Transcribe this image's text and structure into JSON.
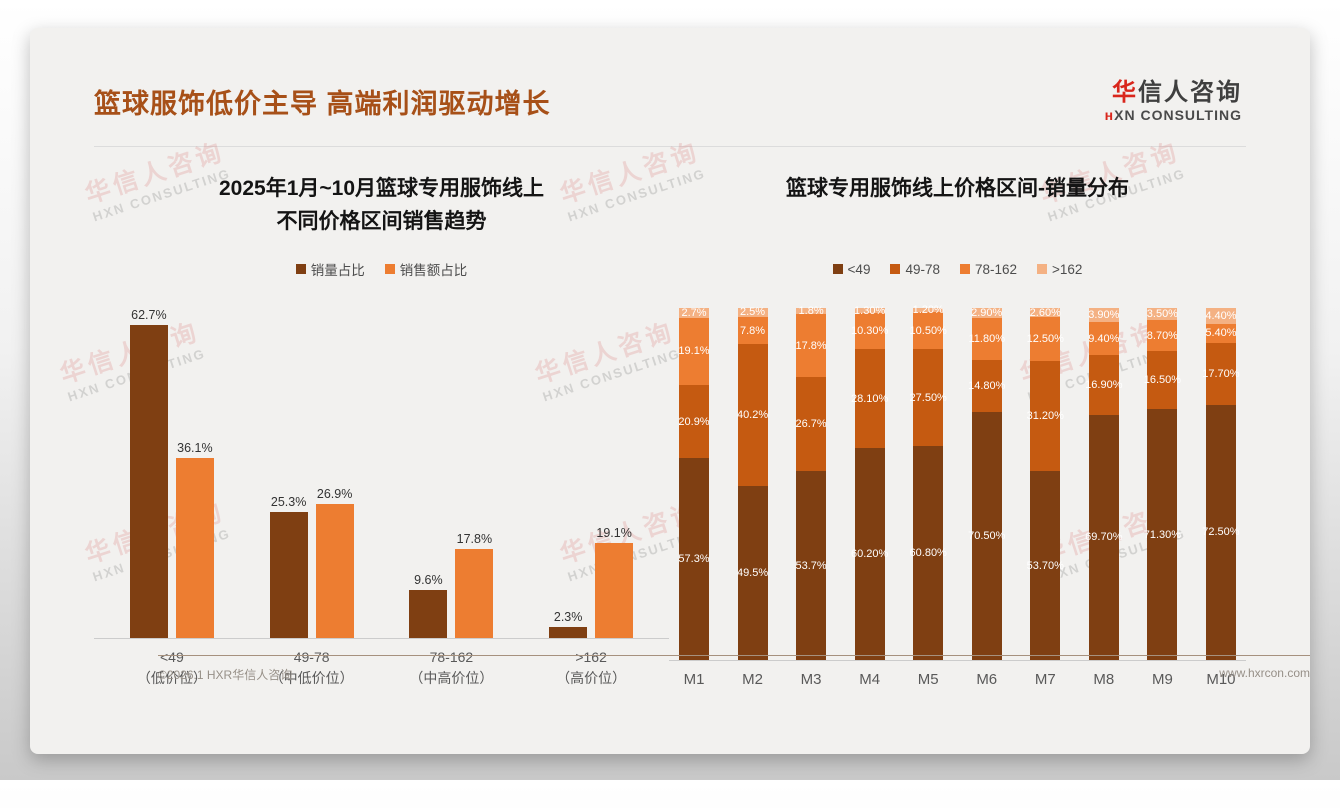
{
  "page": {
    "title": "篮球服饰低价主导 高端利润驱动增长",
    "logo": {
      "cn_red": "华",
      "cn_rest": "信人咨询",
      "en": "HXN CONSULTING"
    },
    "footer": {
      "left": "©2026.1 HXR华信人咨询",
      "right": "www.hxrcon.com"
    },
    "watermark": {
      "cn": "华信人咨询",
      "en": "HXN CONSULTING"
    }
  },
  "colors": {
    "title": "#a75018",
    "series_dark": "#7f3f12",
    "series_mid": "#c55a11",
    "series_orange": "#ed7d31",
    "series_light": "#f4b183"
  },
  "chart_data": [
    {
      "type": "bar",
      "title_lines": [
        "2025年1月~10月篮球专用服饰线上",
        "不同价格区间销售趋势"
      ],
      "categories": [
        "<49",
        "49-78",
        "78-162",
        ">162"
      ],
      "category_sublabels": [
        "（低价位）",
        "（中低价位）",
        "（中高价位）",
        "（高价位）"
      ],
      "ylim": [
        0,
        66
      ],
      "grid": false,
      "legend_position": "top",
      "series": [
        {
          "name": "销量占比",
          "color": "#7f3f12",
          "values": [
            62.7,
            25.3,
            9.6,
            2.3
          ],
          "labels": [
            "62.7%",
            "25.3%",
            "9.6%",
            "2.3%"
          ]
        },
        {
          "name": "销售额占比",
          "color": "#ed7d31",
          "values": [
            36.1,
            26.9,
            17.8,
            19.1
          ],
          "labels": [
            "36.1%",
            "26.9%",
            "17.8%",
            "19.1%"
          ]
        }
      ]
    },
    {
      "type": "bar",
      "subtype": "stacked-100",
      "title": "篮球专用服饰线上价格区间-销量分布",
      "categories": [
        "M1",
        "M2",
        "M3",
        "M4",
        "M5",
        "M6",
        "M7",
        "M8",
        "M9",
        "M10"
      ],
      "ylim": [
        0,
        100
      ],
      "grid": false,
      "legend_position": "top",
      "series": [
        {
          "name": "<49",
          "color": "#7f3f12",
          "values": [
            57.3,
            49.5,
            53.7,
            60.2,
            60.8,
            70.5,
            53.7,
            69.7,
            71.3,
            72.5
          ],
          "labels": [
            "57.3%",
            "49.5%",
            "53.7%",
            "60.20%",
            "60.80%",
            "70.50%",
            "53.70%",
            "69.70%",
            "71.30%",
            "72.50%"
          ]
        },
        {
          "name": "49-78",
          "color": "#c55a11",
          "values": [
            20.9,
            40.2,
            26.7,
            28.1,
            27.5,
            14.8,
            31.2,
            16.9,
            16.5,
            17.7
          ],
          "labels": [
            "20.9%",
            "40.2%",
            "26.7%",
            "28.10%",
            "27.50%",
            "14.80%",
            "31.20%",
            "16.90%",
            "16.50%",
            "17.70%"
          ]
        },
        {
          "name": "78-162",
          "color": "#ed7d31",
          "values": [
            19.1,
            7.8,
            17.8,
            10.3,
            10.5,
            11.8,
            12.5,
            9.4,
            8.7,
            5.4
          ],
          "labels": [
            "19.1%",
            "7.8%",
            "17.8%",
            "10.30%",
            "10.50%",
            "11.80%",
            "12.50%",
            "9.40%",
            "8.70%",
            "5.40%"
          ]
        },
        {
          "name": ">162",
          "color": "#f4b183",
          "values": [
            2.7,
            2.5,
            1.8,
            1.3,
            1.2,
            2.9,
            2.6,
            3.9,
            3.5,
            4.4
          ],
          "labels": [
            "2.7%",
            "2.5%",
            "1.8%",
            "1.30%",
            "1.20%",
            "2.90%",
            "2.60%",
            "3.90%",
            "3.50%",
            "4.40%"
          ]
        }
      ]
    }
  ]
}
